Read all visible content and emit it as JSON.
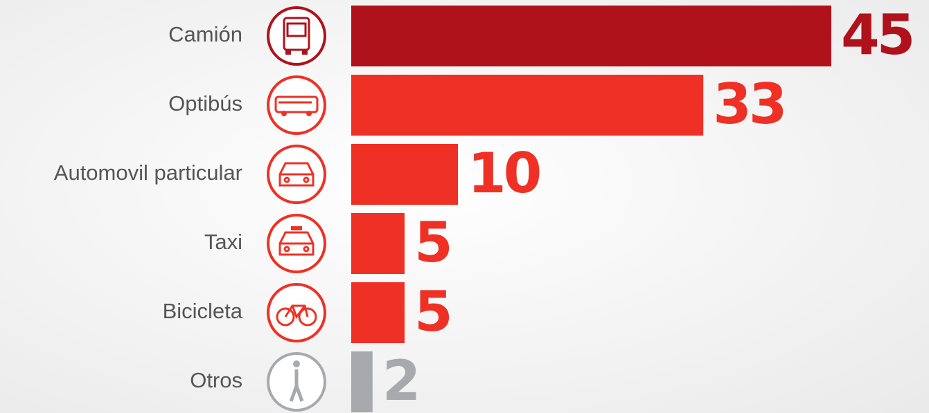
{
  "chart_data": {
    "type": "bar",
    "categories": [
      "Camión",
      "Optibús",
      "Automovil particular",
      "Taxi",
      "Bicicleta",
      "Otros"
    ],
    "values": [
      45,
      33,
      10,
      5,
      5,
      2
    ],
    "colors": [
      "#b0121b",
      "#ee3124",
      "#ee3124",
      "#ee3124",
      "#ee3124",
      "#a7a9ac"
    ],
    "xlim": [
      0,
      45
    ]
  }
}
